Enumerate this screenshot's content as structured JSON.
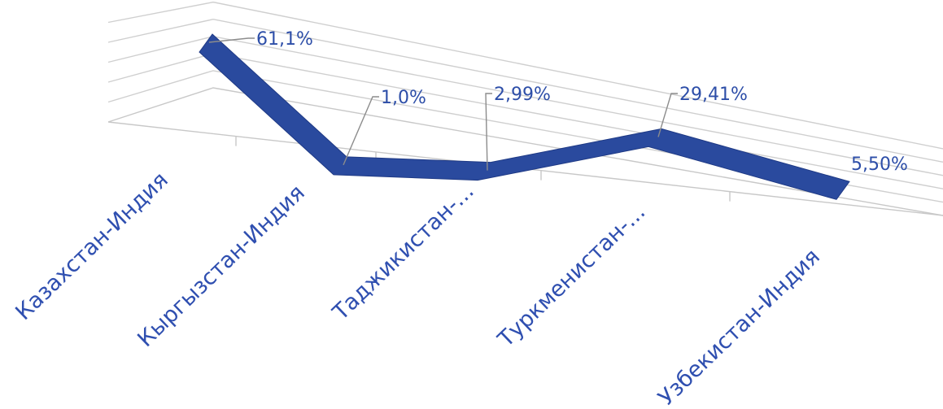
{
  "chart_data": {
    "type": "line",
    "title": "",
    "xlabel": "",
    "ylabel": "",
    "categories": [
      "Казахстан-Индия",
      "Кыргызстан-Индия",
      "Таджикистан-...",
      "Туркменистан-...",
      "Узбекистан-Индия"
    ],
    "data_labels": [
      "61,1%",
      "1,0%",
      "2,99%",
      "29,41%",
      "5,50%"
    ],
    "series": [
      {
        "values": [
          61.1,
          1.0,
          2.99,
          29.41,
          5.5
        ]
      }
    ],
    "ylim": [
      0,
      70
    ],
    "grid": true,
    "legend": "none",
    "style": "3d-line",
    "colors": {
      "series": "#2a4a9e",
      "series_dark": "#1f3a85",
      "labels": "#2d4ea8",
      "grid": "#cfcfcf"
    }
  }
}
